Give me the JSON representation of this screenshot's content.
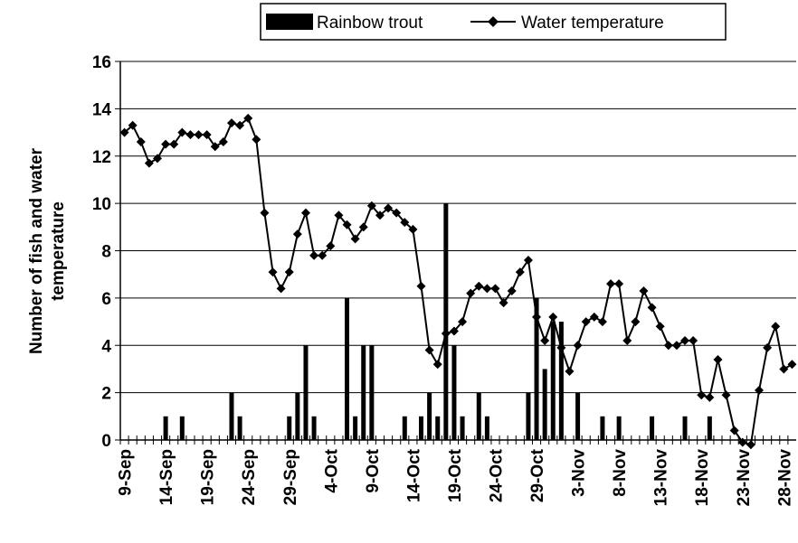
{
  "chart_data": {
    "type": "bar_line",
    "ylabel": [
      "Number of fish and water",
      "temperature"
    ],
    "categories": [
      "9-Sep",
      null,
      null,
      null,
      null,
      "14-Sep",
      null,
      null,
      null,
      null,
      "19-Sep",
      null,
      null,
      null,
      null,
      "24-Sep",
      null,
      null,
      null,
      null,
      "29-Sep",
      null,
      null,
      null,
      null,
      "4-Oct",
      null,
      null,
      null,
      null,
      "9-Oct",
      null,
      null,
      null,
      null,
      "14-Oct",
      null,
      null,
      null,
      null,
      "19-Oct",
      null,
      null,
      null,
      null,
      "24-Oct",
      null,
      null,
      null,
      null,
      "29-Oct",
      null,
      null,
      null,
      null,
      "3-Nov",
      null,
      null,
      null,
      null,
      "8-Nov",
      null,
      null,
      null,
      null,
      "13-Nov",
      null,
      null,
      null,
      null,
      "18-Nov",
      null,
      null,
      null,
      null,
      "23-Nov",
      null,
      null,
      null,
      null,
      "28-Nov",
      null
    ],
    "series": [
      {
        "name": "Rainbow trout",
        "type": "bar",
        "color": "#000000",
        "values": [
          0,
          0,
          0,
          0,
          0,
          1,
          0,
          1,
          0,
          0,
          0,
          0,
          0,
          2,
          1,
          0,
          0,
          0,
          0,
          0,
          1,
          2,
          4,
          1,
          0,
          0,
          0,
          6,
          1,
          4,
          4,
          0,
          0,
          0,
          1,
          0,
          1,
          2,
          1,
          10,
          4,
          1,
          0,
          2,
          1,
          0,
          0,
          0,
          0,
          2,
          6,
          3,
          5,
          5,
          0,
          2,
          0,
          0,
          1,
          0,
          1,
          0,
          0,
          0,
          1,
          0,
          0,
          0,
          1,
          0,
          0,
          1,
          0,
          0,
          0,
          0,
          0,
          0,
          0,
          0,
          0,
          0
        ]
      },
      {
        "name": "Water temperature",
        "type": "line",
        "color": "#000000",
        "values": [
          13.0,
          13.3,
          12.6,
          11.7,
          11.9,
          12.5,
          12.5,
          13.0,
          12.9,
          12.9,
          12.9,
          12.4,
          12.6,
          13.4,
          13.3,
          13.6,
          12.7,
          9.6,
          7.1,
          6.4,
          7.1,
          8.7,
          9.6,
          7.8,
          7.8,
          8.2,
          9.5,
          9.1,
          8.5,
          9.0,
          9.9,
          9.5,
          9.8,
          9.6,
          9.2,
          8.9,
          6.5,
          3.8,
          3.2,
          4.5,
          4.6,
          5.0,
          6.2,
          6.5,
          6.4,
          6.4,
          5.8,
          6.3,
          7.1,
          7.6,
          5.2,
          4.2,
          5.2,
          3.9,
          2.9,
          4.0,
          5.0,
          5.2,
          5.0,
          6.6,
          6.6,
          4.2,
          5.0,
          6.3,
          5.6,
          4.8,
          4.0,
          4.0,
          4.2,
          4.2,
          1.9,
          1.8,
          3.4,
          1.9,
          0.4,
          -0.1,
          -0.2,
          2.1,
          3.9,
          4.8,
          3.0,
          3.2
        ]
      }
    ],
    "ylim": [
      0,
      16
    ],
    "yticks": [
      0,
      2,
      4,
      6,
      8,
      10,
      12,
      14,
      16
    ],
    "grid": true,
    "legend": "top"
  }
}
